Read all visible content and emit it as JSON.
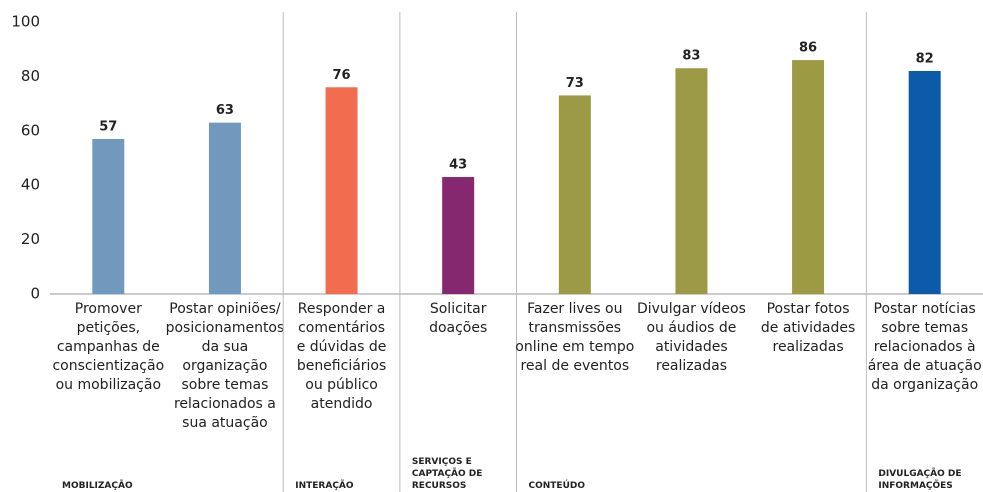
{
  "chart_data": {
    "type": "bar",
    "ylim": [
      0,
      100
    ],
    "yticks": [
      0,
      20,
      40,
      60,
      80,
      100
    ],
    "groups": [
      {
        "label": [
          "MOBILIZAÇÃO"
        ],
        "color": "#7198bd",
        "categories": [
          [
            "Promover",
            "petições,",
            "campanhas de",
            "conscientização",
            "ou mobilização"
          ],
          [
            "Postar opiniões/",
            "posicionamentos",
            "da sua",
            "organização",
            "sobre temas",
            "relacionados a",
            "sua atuação"
          ]
        ],
        "values": [
          57,
          63
        ]
      },
      {
        "label": [
          "INTERAÇÃO"
        ],
        "color": "#f26d50",
        "categories": [
          [
            "Responder a",
            "comentários",
            "e dúvidas de",
            "beneficiários",
            "ou público",
            "atendido"
          ]
        ],
        "values": [
          76
        ]
      },
      {
        "label": [
          "SERVIÇOS E",
          "CAPTAÇÃO DE",
          "RECURSOS"
        ],
        "color": "#85286f",
        "categories": [
          [
            "Solicitar",
            "doações"
          ]
        ],
        "values": [
          43
        ]
      },
      {
        "label": [
          "CONTEÚDO"
        ],
        "color": "#9c9a45",
        "categories": [
          [
            "Fazer lives ou",
            "transmissões",
            "online em tempo",
            "real de eventos"
          ],
          [
            "Divulgar vídeos",
            "ou áudios de",
            "atividades",
            "realizadas"
          ],
          [
            "Postar fotos",
            "de atividades",
            "realizadas"
          ]
        ],
        "values": [
          73,
          83,
          86
        ]
      },
      {
        "label": [
          "DIVULGAÇÃO DE",
          "INFORMAÇÕES"
        ],
        "color": "#0d5aa8",
        "categories": [
          [
            "Postar notícias",
            "sobre temas",
            "relacionados à",
            "área de atuação",
            "da organização"
          ]
        ],
        "values": [
          82
        ]
      }
    ]
  }
}
